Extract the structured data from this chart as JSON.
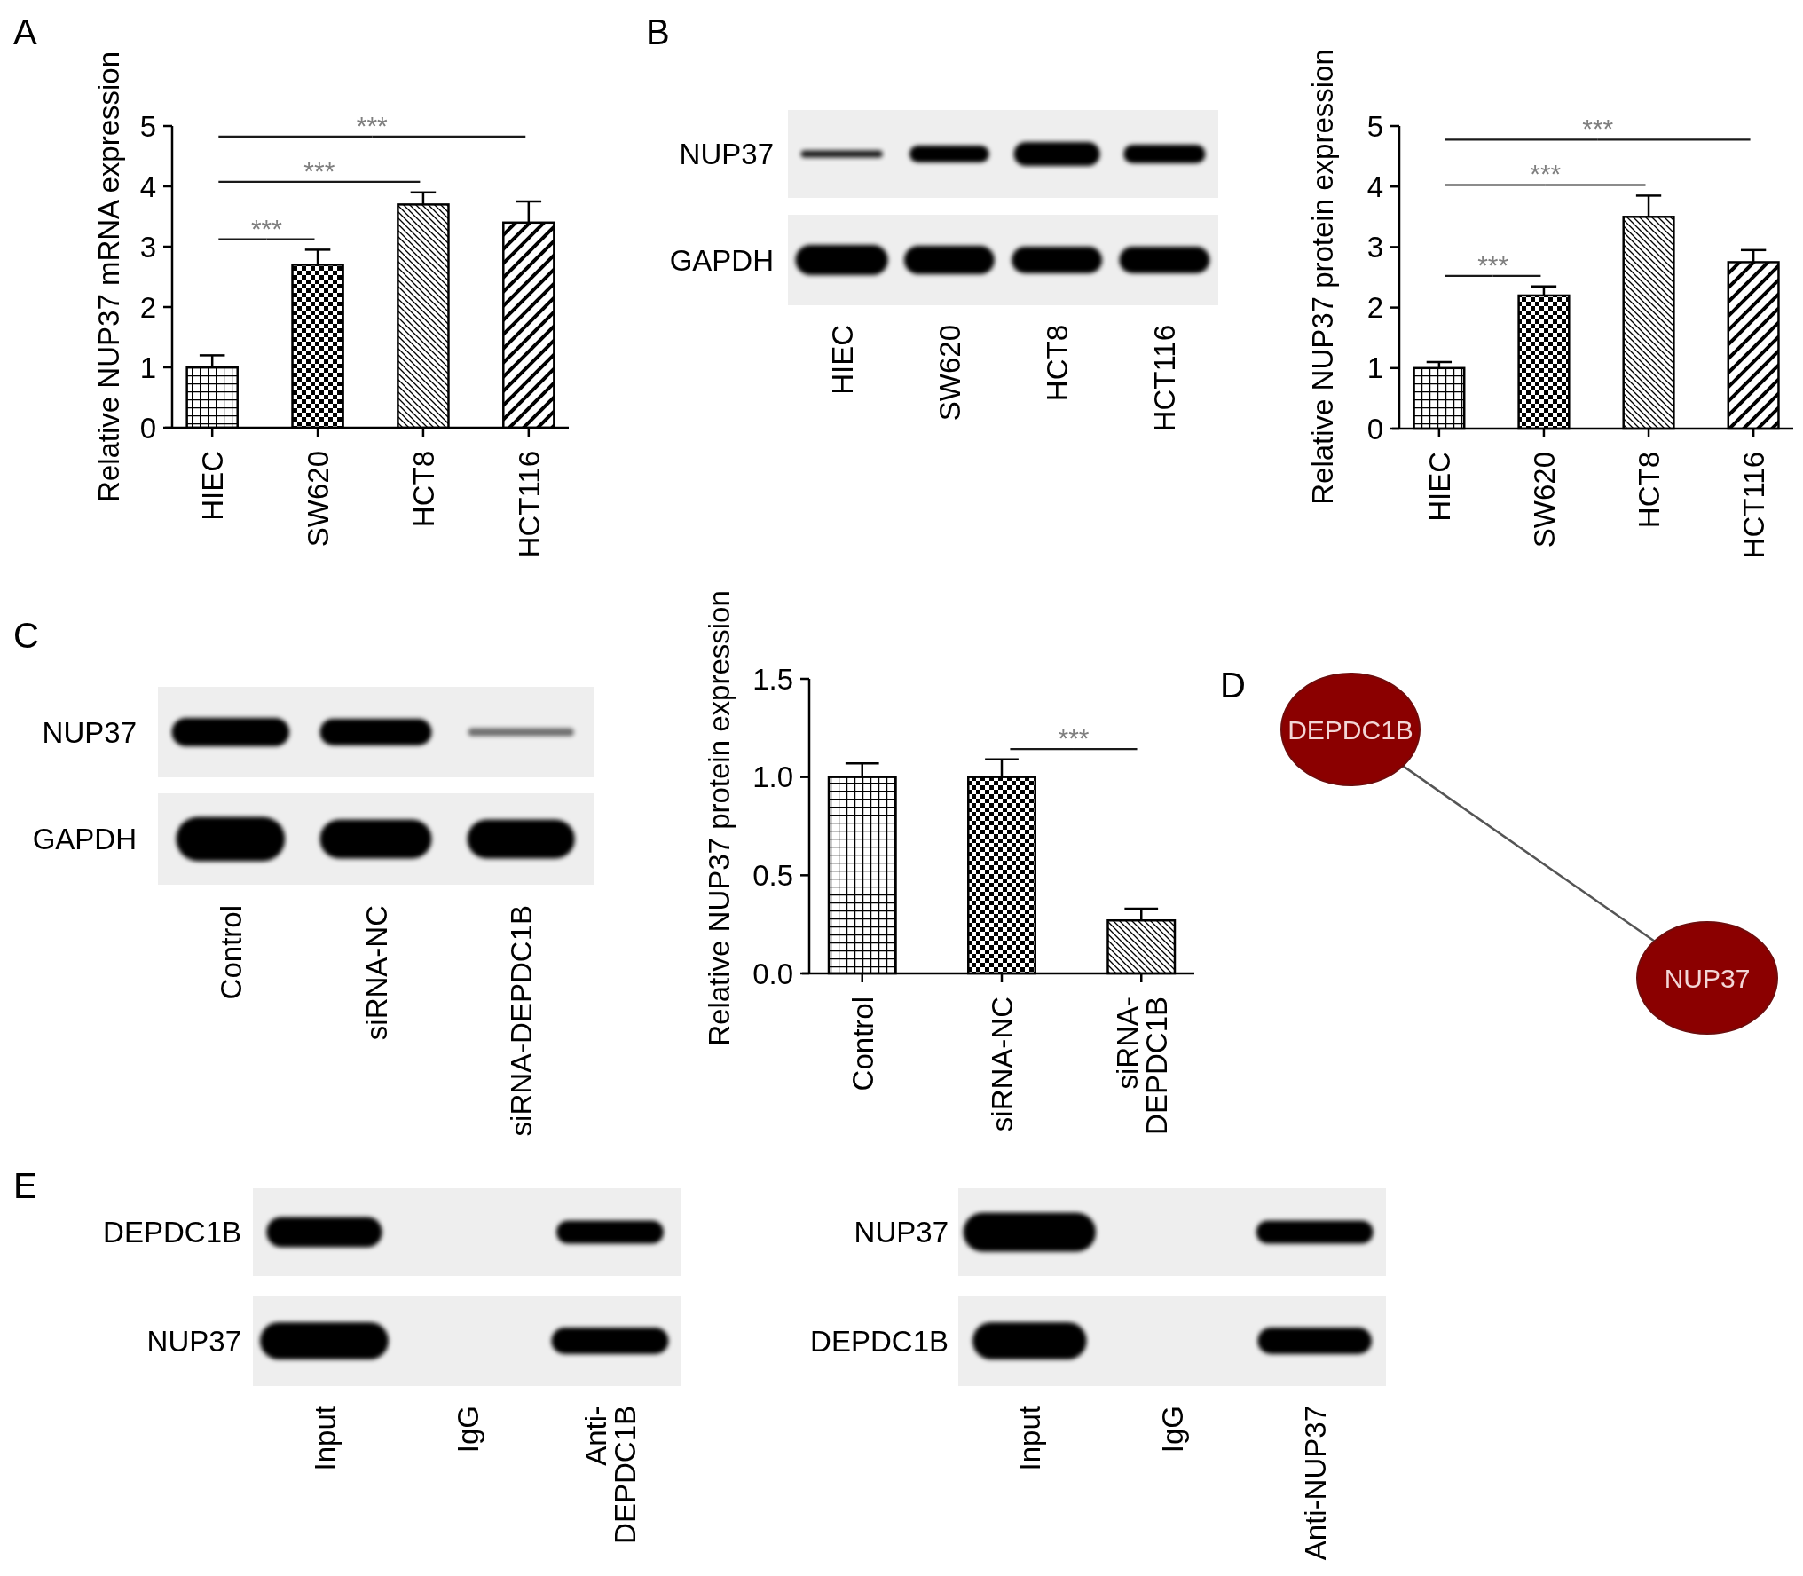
{
  "chart_data": [
    {
      "type": "bar",
      "title": "A",
      "ylabel": "Relative NUP37 mRNA expression",
      "categories": [
        "HIEC",
        "SW620",
        "HCT8",
        "HCT116"
      ],
      "values": [
        1.0,
        2.7,
        3.7,
        3.4
      ],
      "errors": [
        [
          1.0,
          1.2
        ],
        [
          2.7,
          2.95
        ],
        [
          3.7,
          3.9
        ],
        [
          3.4,
          3.75
        ]
      ],
      "color": "#000000",
      "ylim": [
        0,
        5
      ],
      "yticks": [
        0,
        1,
        2,
        3,
        4,
        5
      ],
      "annotations": [
        "***",
        "***",
        "***"
      ]
    },
    {
      "type": "other",
      "title": "B",
      "categories": [
        "HIEC",
        "SW620",
        "HCT8",
        "HCT116"
      ],
      "annotations": [
        "NUP37",
        "GAPDH"
      ]
    },
    {
      "type": "bar",
      "ylabel": "Relative NUP37 protein expression",
      "categories": [
        "HIEC",
        "SW620",
        "HCT8",
        "HCT116"
      ],
      "values": [
        1.0,
        2.2,
        3.5,
        2.75
      ],
      "errors": [
        [
          1.0,
          1.1
        ],
        [
          2.2,
          2.35
        ],
        [
          3.5,
          3.85
        ],
        [
          2.75,
          2.95
        ]
      ],
      "color": "#000000",
      "ylim": [
        0,
        5
      ],
      "yticks": [
        0,
        1,
        2,
        3,
        4,
        5
      ],
      "annotations": [
        "***",
        "***",
        "***"
      ]
    },
    {
      "type": "other",
      "title": "C",
      "categories": [
        "Control",
        "siRNA-NC",
        "siRNA-DEPDC1B"
      ],
      "annotations": [
        "NUP37",
        "GAPDH"
      ]
    },
    {
      "type": "bar",
      "ylabel": "Relative NUP37 protein expression",
      "categories": [
        "Control",
        "siRNA-NC",
        "siRNA-DEPDC1B"
      ],
      "values": [
        1.0,
        1.0,
        0.27
      ],
      "errors": [
        [
          1.0,
          1.07
        ],
        [
          1.0,
          1.09
        ],
        [
          0.27,
          0.33
        ]
      ],
      "color": "#000000",
      "ylim": [
        0,
        1.5
      ],
      "yticks": [
        {
          "value": 0,
          "label": "0.0"
        },
        {
          "value": 0.5,
          "label": "0.5"
        },
        {
          "value": 1,
          "label": "1.0"
        },
        {
          "value": 1.5,
          "label": "1.5"
        }
      ],
      "annotations": [
        "***"
      ]
    },
    {
      "type": "other",
      "title": "D",
      "annotations": [
        "DEPDC1B",
        "NUP37"
      ]
    },
    {
      "type": "other",
      "title": "E",
      "categories": [
        "Input",
        "IgG",
        "Anti-DEPDC1B"
      ],
      "annotations": [
        "DEPDC1B",
        "NUP37"
      ]
    },
    {
      "type": "other",
      "categories": [
        "Input",
        "IgG",
        "Anti-NUP37"
      ],
      "annotations": [
        "NUP37",
        "DEPDC1B"
      ]
    }
  ]
}
